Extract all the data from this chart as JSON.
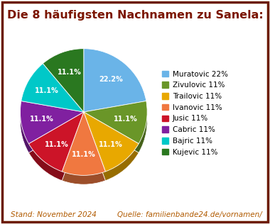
{
  "title": "Die 8 häufigsten Nachnamen zu Sanela:",
  "title_color": "#7B1500",
  "title_fontsize": 11.5,
  "footer_left": "Stand: November 2024",
  "footer_right": "Quelle: familienbande24.de/vornamen/",
  "footer_color": "#b05a00",
  "footer_fontsize": 7.5,
  "labels": [
    "Muratovic",
    "Zivulovic",
    "Trailovic",
    "Ivanovic",
    "Jusic",
    "Cabric",
    "Bajric",
    "Kujevic"
  ],
  "values": [
    22.2,
    11.1,
    11.1,
    11.1,
    11.1,
    11.1,
    11.1,
    11.1
  ],
  "colors": [
    "#6ab4e8",
    "#6a9628",
    "#e8a800",
    "#f07840",
    "#cc1428",
    "#8020a0",
    "#00c8c8",
    "#2a7820"
  ],
  "legend_labels": [
    "Muratovic 22%",
    "Zivulovic 11%",
    "Trailovic 11%",
    "Ivanovic 11%",
    "Jusic 11%",
    "Cabric 11%",
    "Bajric 11%",
    "Kujevic 11%"
  ],
  "startangle": 90,
  "background_color": "#ffffff",
  "border_color": "#6B1A00",
  "border_linewidth": 2.5,
  "pct_fontsize": 7.0,
  "legend_fontsize": 7.5
}
